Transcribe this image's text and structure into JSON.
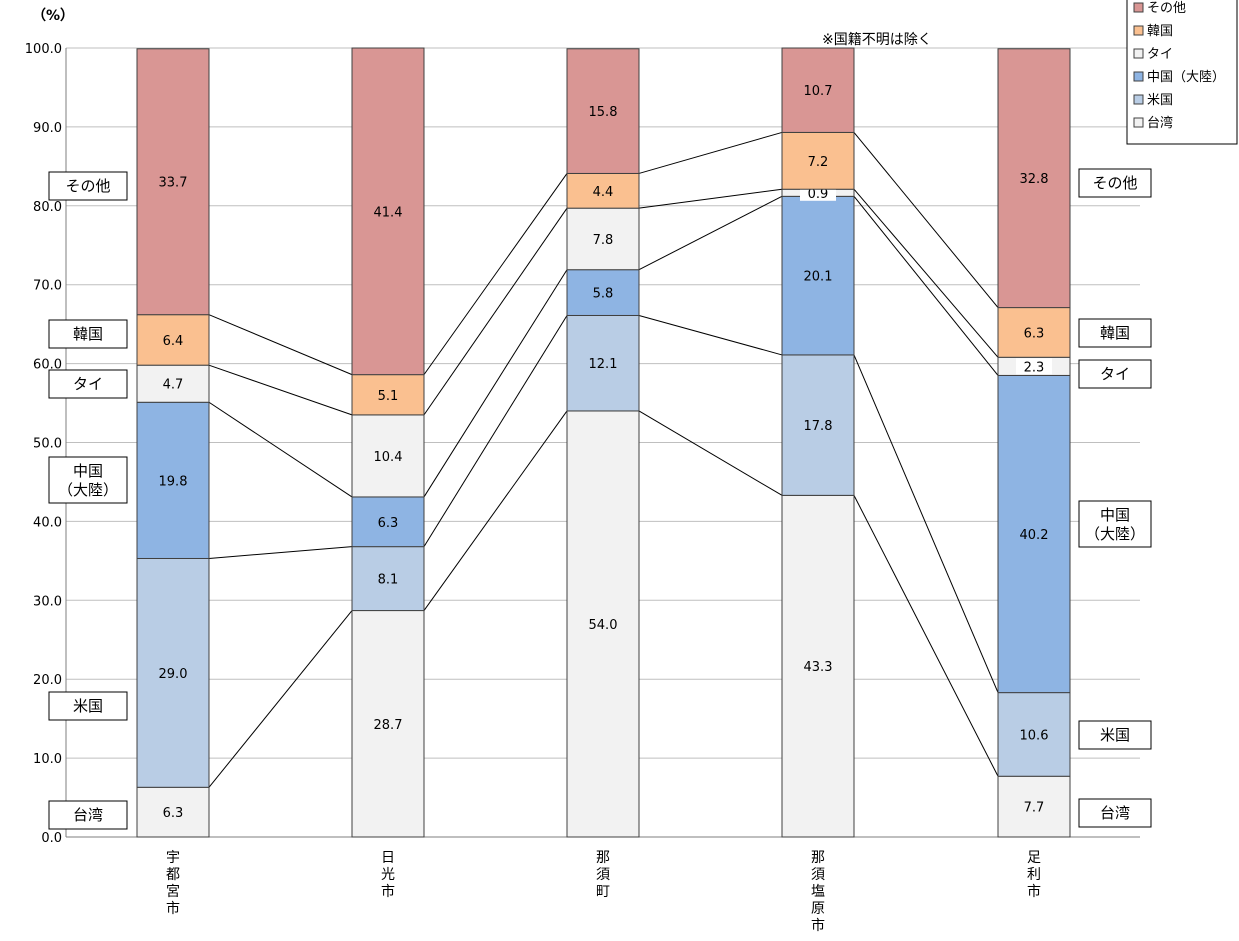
{
  "chart_data": {
    "type": "bar",
    "stacked": true,
    "y_unit_label": "（%）",
    "note": "※国籍不明は除く",
    "ylim": [
      0,
      100
    ],
    "yticks": [
      "0.0",
      "10.0",
      "20.0",
      "30.0",
      "40.0",
      "50.0",
      "60.0",
      "70.0",
      "80.0",
      "90.0",
      "100.0"
    ],
    "grid": true,
    "categories": [
      "宇都宮市",
      "日光市",
      "那須町",
      "那須塩原市",
      "足利市"
    ],
    "series": [
      {
        "name": "台湾",
        "color": "#f2f2f2",
        "values": [
          6.3,
          28.7,
          54.0,
          43.3,
          7.7
        ],
        "labels": [
          "6.3",
          "28.7",
          "54.0",
          "43.3",
          "7.7"
        ]
      },
      {
        "name": "米国",
        "color": "#b9cde5",
        "values": [
          29.0,
          8.1,
          12.1,
          17.8,
          10.6
        ],
        "labels": [
          "29.0",
          "8.1",
          "12.1",
          "17.8",
          "10.6"
        ]
      },
      {
        "name": "中国（大陸）",
        "color": "#8eb4e3",
        "values": [
          19.8,
          6.3,
          5.8,
          20.1,
          40.2
        ],
        "labels": [
          "19.8",
          "6.3",
          "5.8",
          "20.1",
          "40.2"
        ]
      },
      {
        "name": "タイ",
        "color": "#f2f2f2",
        "values": [
          4.7,
          10.4,
          7.8,
          0.9,
          2.3
        ],
        "labels": [
          "4.7",
          "10.4",
          "7.8",
          "0.9",
          "2.3"
        ]
      },
      {
        "name": "韓国",
        "color": "#fac090",
        "values": [
          6.4,
          5.1,
          4.4,
          7.2,
          6.3
        ],
        "labels": [
          "6.4",
          "5.1",
          "4.4",
          "7.2",
          "6.3"
        ]
      },
      {
        "name": "その他",
        "color": "#d99694",
        "values": [
          33.7,
          41.4,
          15.8,
          10.7,
          32.8
        ],
        "labels": [
          "33.7",
          "41.4",
          "15.8",
          "10.7",
          "32.8"
        ]
      }
    ],
    "legend_order": [
      "その他",
      "韓国",
      "タイ",
      "中国（大陸）",
      "米国",
      "台湾"
    ],
    "legend_position": "top-right",
    "side_labels": {
      "left": [
        "その他",
        "韓国",
        "タイ",
        "中国\n（大陸）",
        "米国",
        "台湾"
      ],
      "right": [
        "その他",
        "韓国",
        "タイ",
        "中国\n（大陸）",
        "米国",
        "台湾"
      ]
    }
  }
}
